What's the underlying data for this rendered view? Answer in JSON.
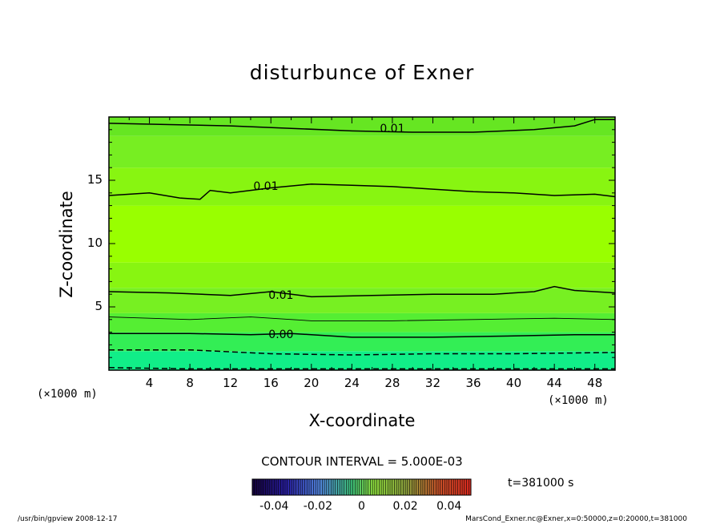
{
  "chart_data": {
    "type": "contour",
    "title": "disturbunce of Exner",
    "xlabel": "X-coordinate",
    "ylabel": "Z-coordinate",
    "x_unit": "(×1000 m)",
    "y_unit": "(×1000 m)",
    "xlim": [
      0,
      50
    ],
    "ylim": [
      0,
      20
    ],
    "x_ticks": [
      "4",
      "8",
      "12",
      "16",
      "20",
      "24",
      "28",
      "32",
      "36",
      "40",
      "44",
      "48"
    ],
    "y_ticks": [
      "5",
      "10",
      "15"
    ],
    "contour_lines": [
      {
        "level": "0.01",
        "style": "solid",
        "label": "0.01",
        "points": [
          [
            0,
            19.5
          ],
          [
            6,
            19.4
          ],
          [
            12,
            19.3
          ],
          [
            18,
            19.1
          ],
          [
            24,
            18.9
          ],
          [
            30,
            18.8
          ],
          [
            36,
            18.8
          ],
          [
            42,
            19.0
          ],
          [
            46,
            19.3
          ],
          [
            48,
            19.8
          ],
          [
            50,
            19.8
          ]
        ]
      },
      {
        "level": "0.01",
        "style": "solid",
        "label": "0.01",
        "points": [
          [
            0,
            13.8
          ],
          [
            4,
            14.0
          ],
          [
            7,
            13.6
          ],
          [
            9,
            13.5
          ],
          [
            10,
            14.2
          ],
          [
            12,
            14.0
          ],
          [
            16,
            14.4
          ],
          [
            20,
            14.7
          ],
          [
            24,
            14.6
          ],
          [
            28,
            14.5
          ],
          [
            32,
            14.3
          ],
          [
            36,
            14.1
          ],
          [
            40,
            14.0
          ],
          [
            44,
            13.8
          ],
          [
            48,
            13.9
          ],
          [
            50,
            13.7
          ]
        ]
      },
      {
        "level": "0.01",
        "style": "solid",
        "label": "0.01",
        "points": [
          [
            0,
            6.2
          ],
          [
            6,
            6.1
          ],
          [
            12,
            5.9
          ],
          [
            16,
            6.2
          ],
          [
            20,
            5.8
          ],
          [
            26,
            5.9
          ],
          [
            32,
            6.0
          ],
          [
            38,
            6.0
          ],
          [
            42,
            6.2
          ],
          [
            44,
            6.6
          ],
          [
            46,
            6.3
          ],
          [
            50,
            6.1
          ]
        ]
      },
      {
        "level": "0.005",
        "style": "solid",
        "label": "",
        "points": [
          [
            0,
            4.2
          ],
          [
            8,
            4.0
          ],
          [
            14,
            4.2
          ],
          [
            20,
            3.9
          ],
          [
            28,
            3.9
          ],
          [
            36,
            4.0
          ],
          [
            44,
            4.1
          ],
          [
            50,
            4.0
          ]
        ]
      },
      {
        "level": "0.00",
        "style": "solid",
        "label": "0.00",
        "points": [
          [
            0,
            2.9
          ],
          [
            8,
            2.9
          ],
          [
            14,
            2.8
          ],
          [
            18,
            2.9
          ],
          [
            24,
            2.6
          ],
          [
            32,
            2.6
          ],
          [
            40,
            2.7
          ],
          [
            46,
            2.8
          ],
          [
            50,
            2.8
          ]
        ]
      },
      {
        "level": "-0.005",
        "style": "dashed",
        "label": "",
        "points": [
          [
            0,
            1.6
          ],
          [
            8,
            1.6
          ],
          [
            16,
            1.3
          ],
          [
            24,
            1.2
          ],
          [
            32,
            1.3
          ],
          [
            40,
            1.3
          ],
          [
            50,
            1.4
          ]
        ]
      },
      {
        "level": "-0.01",
        "style": "dashed",
        "label": "",
        "points": [
          [
            0,
            0.2
          ],
          [
            8,
            0.1
          ],
          [
            16,
            0.1
          ],
          [
            24,
            0.1
          ],
          [
            32,
            0.1
          ],
          [
            40,
            0.1
          ],
          [
            50,
            0.1
          ]
        ]
      }
    ],
    "contour_labels": [
      {
        "text": "0.01",
        "x": 28,
        "y": 19.0
      },
      {
        "text": "0.01",
        "x": 15.5,
        "y": 14.4
      },
      {
        "text": "0.01",
        "x": 17,
        "y": 5.8
      },
      {
        "text": "0.00",
        "x": 17,
        "y": 2.7
      }
    ],
    "shading_bands": [
      {
        "z0": 0,
        "z1": 1.5,
        "color": "#11ee88"
      },
      {
        "z0": 1.5,
        "z1": 3,
        "color": "#33ee55"
      },
      {
        "z0": 3,
        "z1": 4.5,
        "color": "#55ee33"
      },
      {
        "z0": 4.5,
        "z1": 6.5,
        "color": "#77f022"
      },
      {
        "z0": 6.5,
        "z1": 8.5,
        "color": "#88f511"
      },
      {
        "z0": 8.5,
        "z1": 13,
        "color": "#99ff00"
      },
      {
        "z0": 13,
        "z1": 16,
        "color": "#88f511"
      },
      {
        "z0": 16,
        "z1": 18.5,
        "color": "#77ee22"
      },
      {
        "z0": 18.5,
        "z1": 20,
        "color": "#66e622"
      }
    ],
    "contour_interval": "CONTOUR INTERVAL = 5.000E-03",
    "time_label": "t=381000 s",
    "colorbar": {
      "ticks": [
        "-0.04",
        "-0.02",
        "0",
        "0.02",
        "0.04"
      ],
      "range": [
        -0.05,
        0.05
      ]
    }
  },
  "footer": {
    "left": "/usr/bin/gpview   2008-12-17",
    "right": "MarsCond_Exner.nc@Exner,x=0:50000,z=0:20000,t=381000"
  }
}
